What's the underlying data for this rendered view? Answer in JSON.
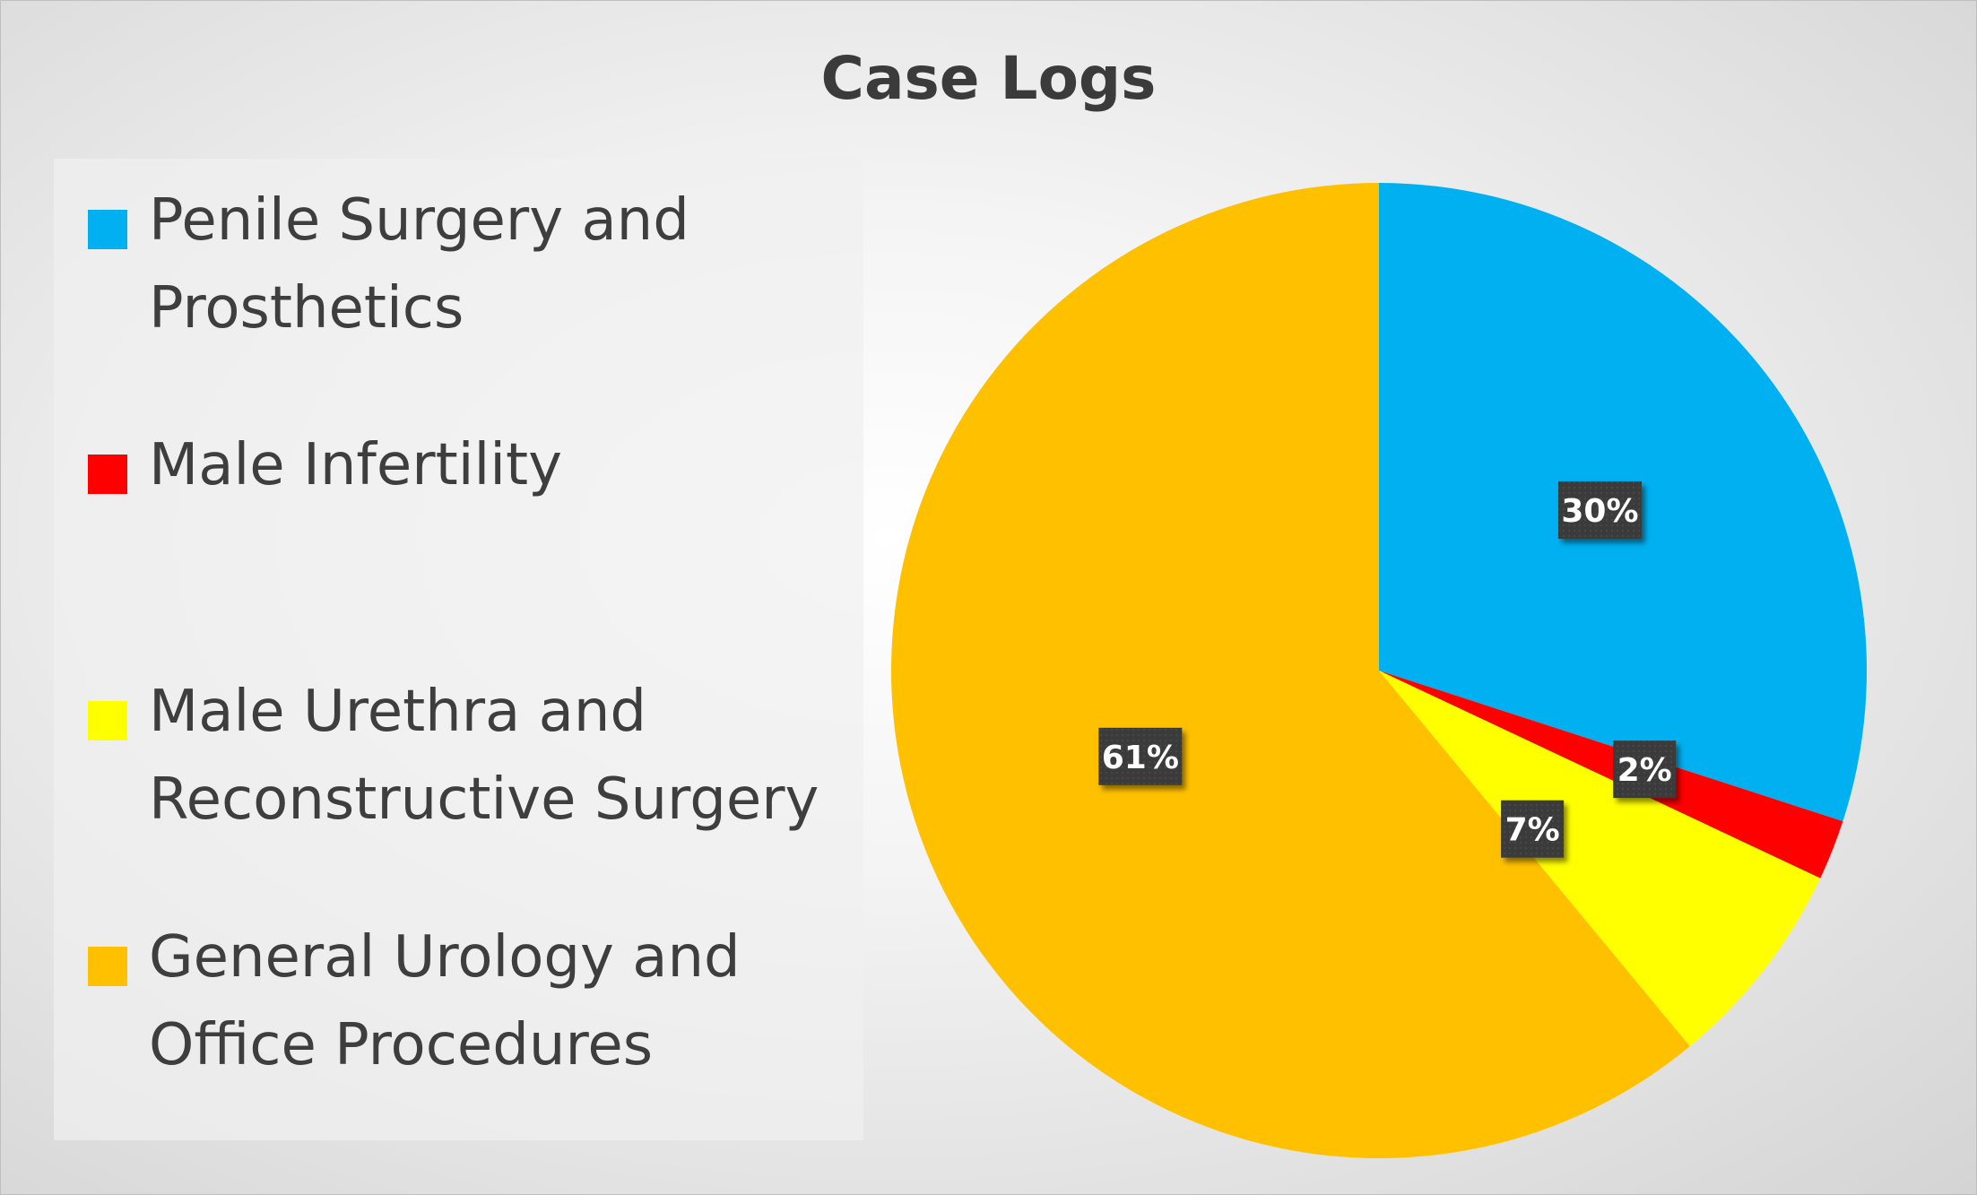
{
  "chart_data": {
    "type": "pie",
    "title": "Case Logs",
    "legend_position": "left",
    "categories": [
      "Penile Surgery and Prosthetics",
      "Male Infertility",
      "Male Urethra and Reconstructive Surgery",
      "General Urology and Office Procedures"
    ],
    "values": [
      30,
      2,
      7,
      61
    ],
    "data_labels": [
      "30%",
      "2%",
      "7%",
      "61%"
    ],
    "colors": [
      "#00b0f0",
      "#ff0000",
      "#ffff00",
      "#ffc000"
    ],
    "legend_lines": [
      [
        "Penile Surgery and",
        "Prosthetics"
      ],
      [
        "Male Infertility"
      ],
      [
        "Male Urethra and",
        "Reconstructive Surgery"
      ],
      [
        "General Urology and",
        "Office Procedures"
      ]
    ]
  }
}
